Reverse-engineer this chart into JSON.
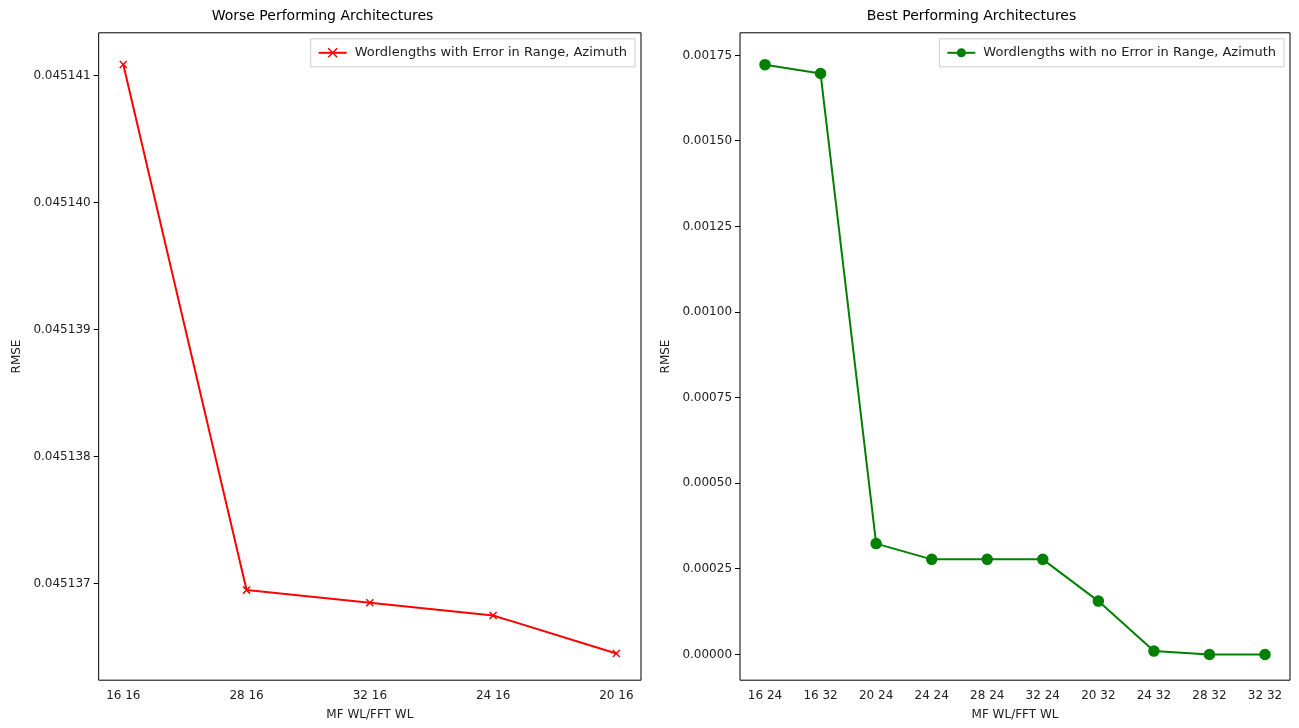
{
  "chart_data": [
    {
      "type": "line",
      "title": "Worse Performing Architectures",
      "xlabel": "MF WL/FFT WL",
      "ylabel": "RMSE",
      "categories": [
        "16 16",
        "28 16",
        "32 16",
        "24 16",
        "20 16"
      ],
      "series": [
        {
          "name": "Wordlengths with Error in Range, Azimuth",
          "color": "#ff0000",
          "values": [
            0.04514109,
            0.04513695,
            0.04513685,
            0.04513675,
            0.04513645
          ]
        }
      ],
      "ylim": [
        0.04513624,
        0.04514134
      ],
      "yticks": [
        {
          "value": 0.045137,
          "label": "0.045137"
        },
        {
          "value": 0.045138,
          "label": "0.045138"
        },
        {
          "value": 0.045139,
          "label": "0.045139"
        },
        {
          "value": 0.04514,
          "label": "0.045140"
        },
        {
          "value": 0.045141,
          "label": "0.045141"
        }
      ],
      "marker": "cross",
      "legend": "top right",
      "grid": false
    },
    {
      "type": "line",
      "title": "Best Performing Architectures",
      "xlabel": "MF WL/FFT WL",
      "ylabel": "RMSE",
      "categories": [
        "16 24",
        "16 32",
        "20 24",
        "24 24",
        "28 24",
        "32 24",
        "20 32",
        "24 32",
        "28 32",
        "32 32"
      ],
      "series": [
        {
          "name": "Wordlengths with no Error in Range, Azimuth",
          "color": "#008000",
          "values": [
            0.001723,
            0.001697,
            0.000324,
            0.000278,
            0.000278,
            0.000278,
            0.000156,
            1e-05,
            0.0,
            0.0
          ]
        }
      ],
      "ylim": [
        -7.5e-05,
        0.001816
      ],
      "yticks": [
        {
          "value": 0,
          "label": "0.00000"
        },
        {
          "value": 0.00025,
          "label": "0.00025"
        },
        {
          "value": 0.0005,
          "label": "0.00050"
        },
        {
          "value": 0.00075,
          "label": "0.00075"
        },
        {
          "value": 0.001,
          "label": "0.00100"
        },
        {
          "value": 0.00125,
          "label": "0.00125"
        },
        {
          "value": 0.0015,
          "label": "0.00150"
        },
        {
          "value": 0.00175,
          "label": "0.00175"
        }
      ],
      "marker": "circle",
      "legend": "top right",
      "grid": false
    }
  ]
}
